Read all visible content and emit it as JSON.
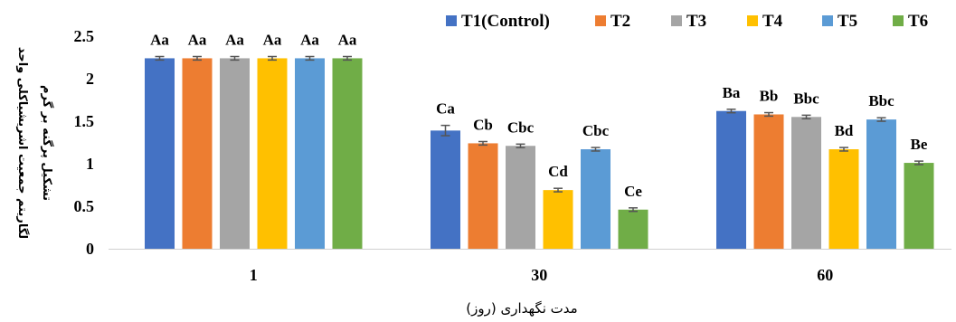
{
  "chart_data": {
    "type": "bar",
    "categories": [
      "1",
      "30",
      "60"
    ],
    "series": [
      {
        "name": "T1(Control)",
        "color": "#4472C4",
        "values": [
          2.24,
          1.39,
          1.62
        ],
        "errors": [
          0.01,
          0.05,
          0.01
        ],
        "labels": [
          "Aa",
          "Ca",
          "Ba"
        ]
      },
      {
        "name": "T2",
        "color": "#ED7D31",
        "values": [
          2.24,
          1.24,
          1.58
        ],
        "errors": [
          0.01,
          0.01,
          0.01
        ],
        "labels": [
          "Aa",
          "Cb",
          "Bb"
        ]
      },
      {
        "name": "T3",
        "color": "#A5A5A5",
        "values": [
          2.24,
          1.21,
          1.55
        ],
        "errors": [
          0.01,
          0.01,
          0.01
        ],
        "labels": [
          "Aa",
          "Cbc",
          "Bbc"
        ]
      },
      {
        "name": "T4",
        "color": "#FFC000",
        "values": [
          2.24,
          0.69,
          1.17
        ],
        "errors": [
          0.01,
          0.01,
          0.01
        ],
        "labels": [
          "Aa",
          "Cd",
          "Bd"
        ]
      },
      {
        "name": "T5",
        "color": "#5B9BD5",
        "values": [
          2.24,
          1.17,
          1.52
        ],
        "errors": [
          0.01,
          0.01,
          0.01
        ],
        "labels": [
          "Aa",
          "Cbc",
          "Bbc"
        ]
      },
      {
        "name": "T6",
        "color": "#70AD47",
        "values": [
          2.24,
          0.46,
          1.01
        ],
        "errors": [
          0.01,
          0.01,
          0.01
        ],
        "labels": [
          "Aa",
          "Ce",
          "Be"
        ]
      }
    ],
    "xlabel": "مدت نگهداری (روز)",
    "ylabel": [
      "لگاریتم جمعیت اشریشیاکلی واحد",
      "تشکیل پرگنه بر گرم"
    ],
    "ylim": [
      0,
      2.5
    ],
    "yticks": [
      "0",
      "0.5",
      "1",
      "1.5",
      "2",
      "2.5"
    ],
    "grid": false,
    "legend": "top-right"
  }
}
